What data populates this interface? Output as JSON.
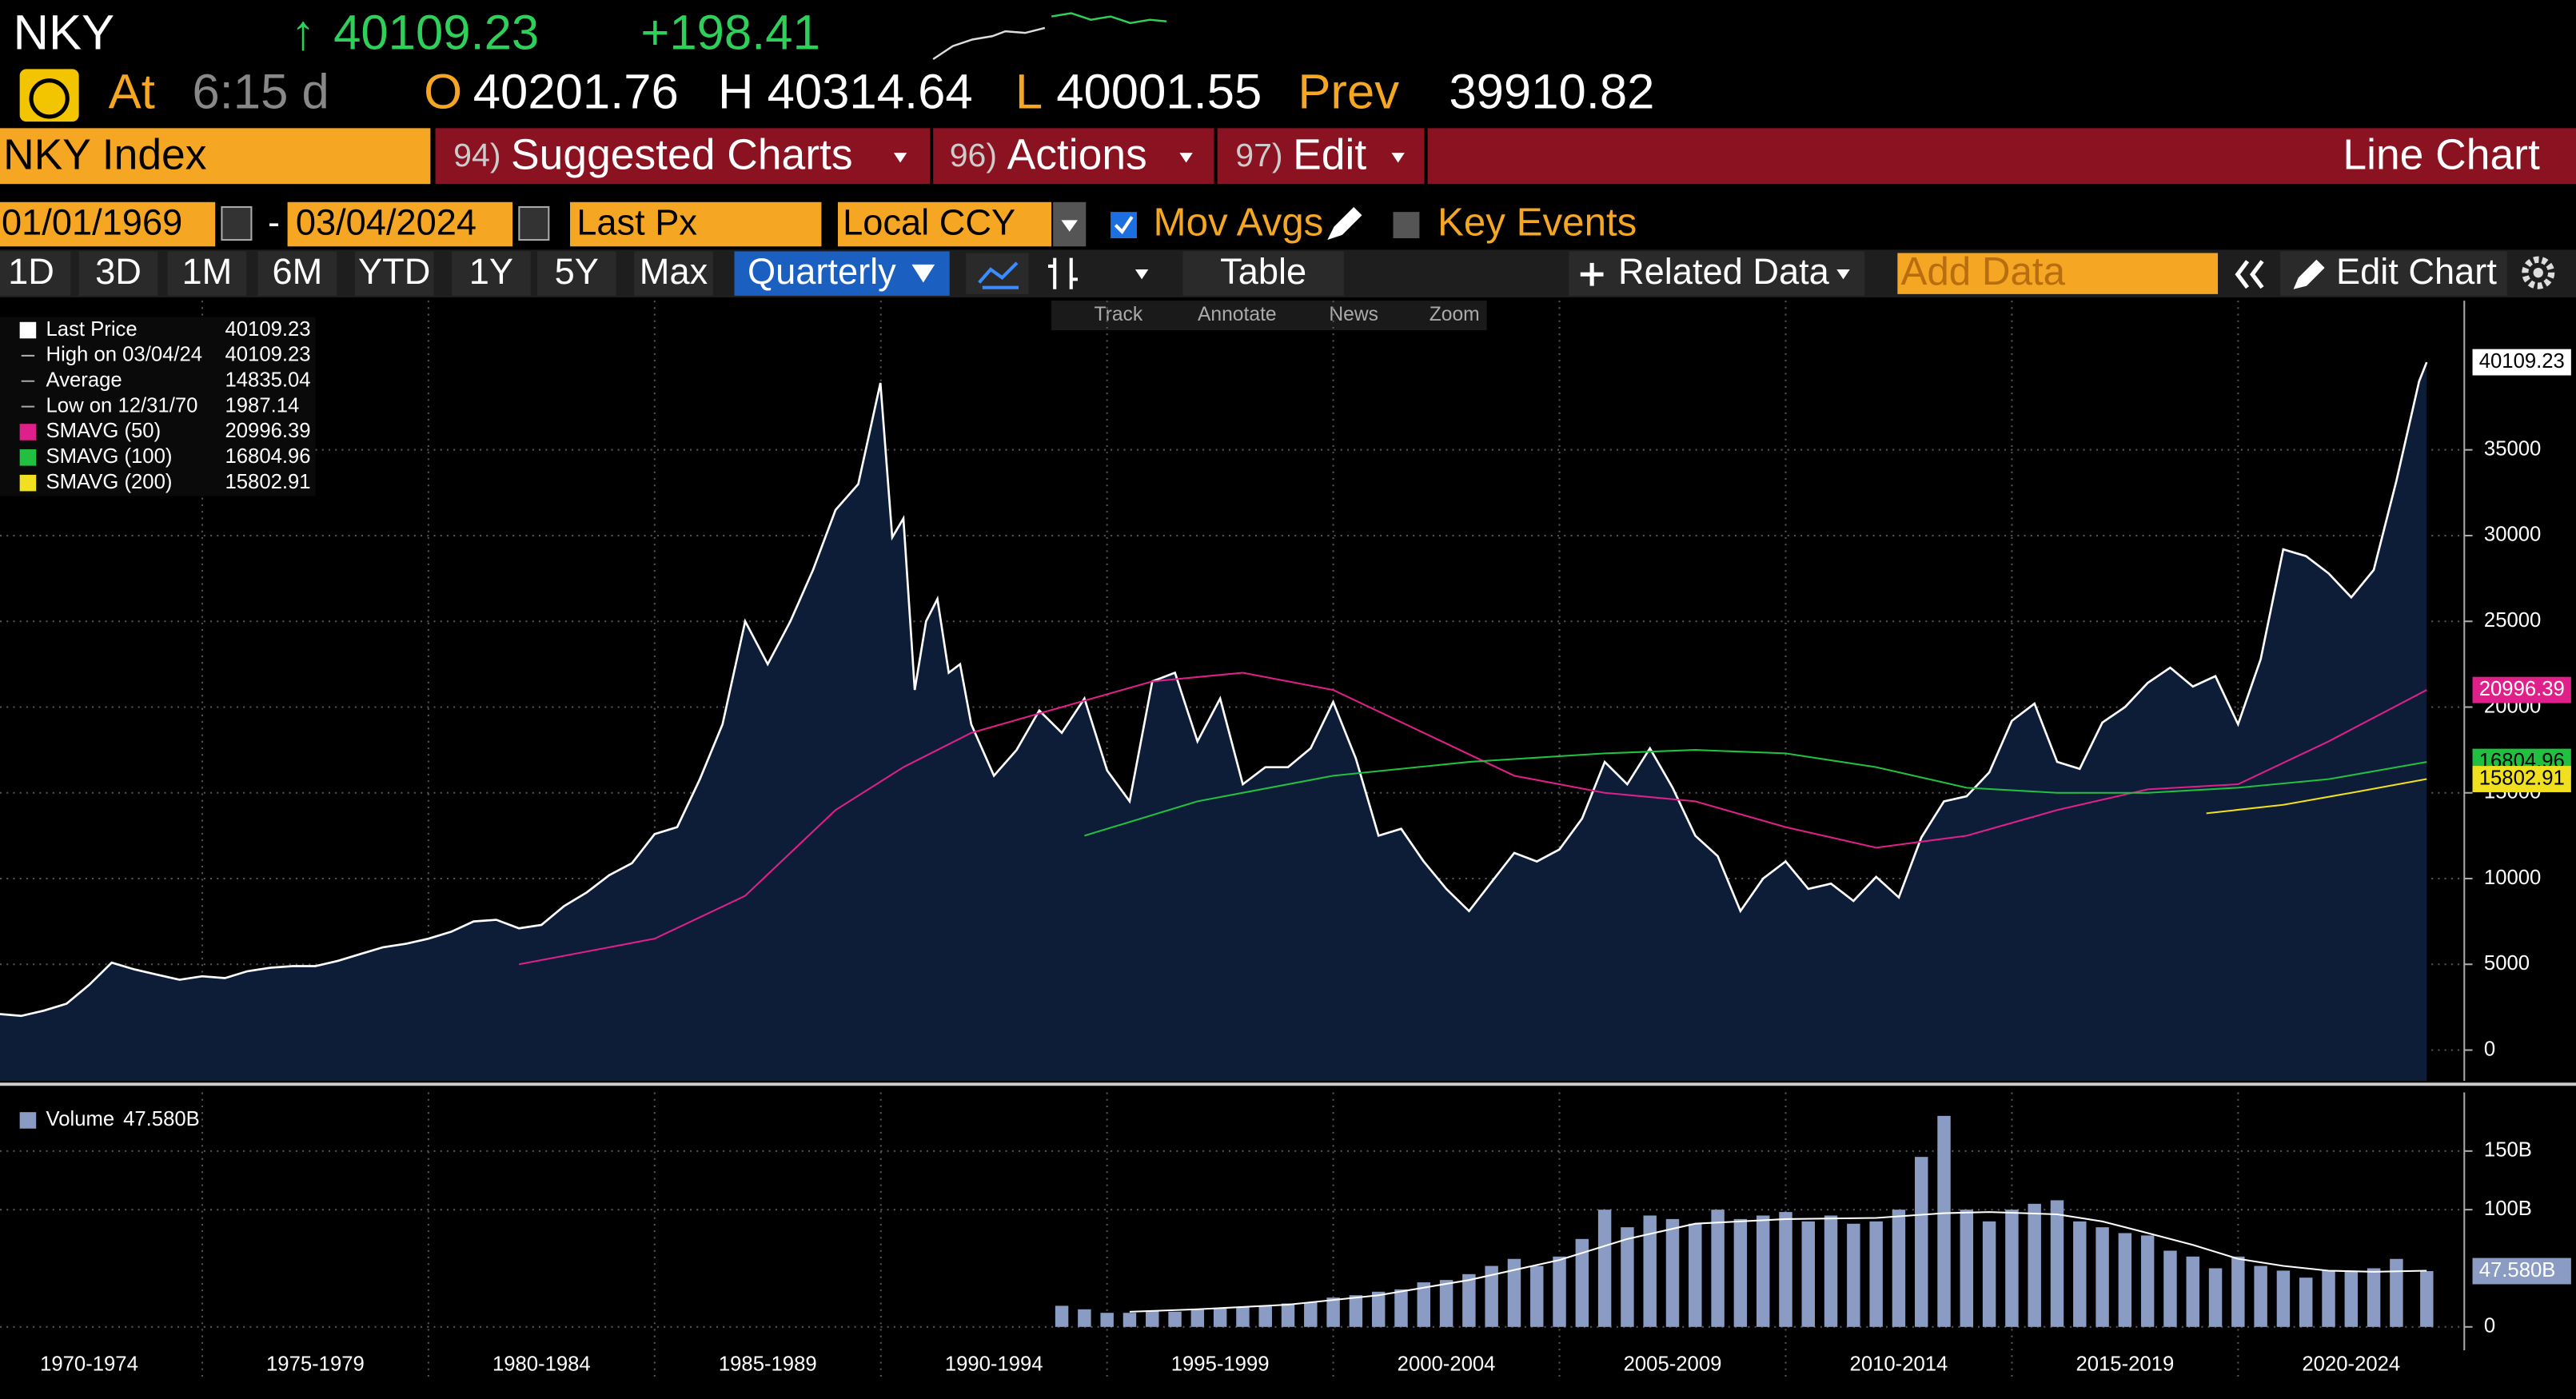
{
  "header": {
    "ticker": "NKY",
    "arrow": "↑",
    "last": 40109.23,
    "change": "+198.41",
    "at_label": "At",
    "time": "6:15 d",
    "open_label": "O",
    "open": 40201.76,
    "high_label": "H",
    "high": 40314.64,
    "low_label": "L",
    "low": 40001.55,
    "prev_label": "Prev",
    "prev": 39910.82
  },
  "menu": {
    "security": "NKY Index",
    "items": [
      {
        "num": "94)",
        "label": "Suggested Charts"
      },
      {
        "num": "96)",
        "label": "Actions"
      },
      {
        "num": "97)",
        "label": "Edit"
      }
    ],
    "chart_type": "Line Chart"
  },
  "controls": {
    "start_date": "01/01/1969",
    "separator": "-",
    "end_date": "03/04/2024",
    "field": "Last Px",
    "currency": "Local CCY",
    "mov_avgs": "Mov Avgs",
    "key_events": "Key Events"
  },
  "toolbar": {
    "periods": [
      "1D",
      "3D",
      "1M",
      "6M",
      "YTD",
      "1Y",
      "5Y",
      "Max"
    ],
    "frequency": "Quarterly",
    "table": "Table",
    "related": "Related Data",
    "add_data": "Add Data",
    "edit_chart": "Edit Chart"
  },
  "chart_tools": [
    "Track",
    "Annotate",
    "News",
    "Zoom"
  ],
  "chart_data": [
    {
      "type": "line",
      "xlim": [
        1970.53,
        2025
      ],
      "ylim": [
        -1800,
        43700
      ],
      "xticks": [
        1975,
        1980,
        1985,
        1990,
        1995,
        2000,
        2005,
        2010,
        2015,
        2020
      ],
      "yticks": [
        0,
        5000,
        10000,
        15000,
        20000,
        25000,
        30000,
        35000
      ],
      "grid": true,
      "stats": [
        {
          "label": "High on 03/04/24",
          "value": 40109.23
        },
        {
          "label": "Average",
          "value": 14835.04
        },
        {
          "label": "Low on 12/31/70",
          "value": 1987.14
        }
      ],
      "series": [
        {
          "name": "Last Price",
          "color": "#ffffff",
          "area_color": "#0d1d38",
          "x": [
            1970.53,
            1971,
            1971.5,
            1972,
            1972.5,
            1973,
            1973.5,
            1974,
            1974.5,
            1975,
            1975.5,
            1976,
            1976.5,
            1977,
            1977.5,
            1978,
            1978.5,
            1979,
            1979.5,
            1980,
            1980.5,
            1981,
            1981.5,
            1982,
            1982.5,
            1983,
            1983.5,
            1984,
            1984.5,
            1985,
            1985.5,
            1986,
            1986.5,
            1987,
            1987.5,
            1988,
            1988.5,
            1989,
            1989.5,
            1989.99,
            1990.25,
            1990.5,
            1990.75,
            1991,
            1991.25,
            1991.5,
            1991.75,
            1992,
            1992.5,
            1993,
            1993.5,
            1994,
            1994.5,
            1995,
            1995.5,
            1996,
            1996.5,
            1997,
            1997.5,
            1998,
            1998.5,
            1999,
            1999.5,
            2000,
            2000.5,
            2001,
            2001.5,
            2002,
            2002.5,
            2003,
            2003.5,
            2004,
            2004.5,
            2005,
            2005.5,
            2006,
            2006.5,
            2007,
            2007.5,
            2008,
            2008.5,
            2009,
            2009.5,
            2010,
            2010.5,
            2011,
            2011.5,
            2012,
            2012.5,
            2013,
            2013.5,
            2014,
            2014.5,
            2015,
            2015.5,
            2016,
            2016.5,
            2017,
            2017.5,
            2018,
            2018.5,
            2019,
            2019.5,
            2020,
            2020.5,
            2021,
            2021.5,
            2022,
            2022.5,
            2023,
            2023.5,
            2024,
            2024.17
          ],
          "values": [
            2100,
            1990,
            2300,
            2700,
            3800,
            5100,
            4700,
            4400,
            4100,
            4300,
            4200,
            4600,
            4800,
            4900,
            4900,
            5200,
            5600,
            6000,
            6200,
            6500,
            6900,
            7500,
            7600,
            7100,
            7300,
            8400,
            9200,
            10200,
            10900,
            12600,
            13000,
            15800,
            19000,
            25000,
            22500,
            25000,
            28000,
            31500,
            33000,
            38900,
            29900,
            31000,
            21000,
            25000,
            26300,
            22000,
            22500,
            19000,
            16000,
            17500,
            19800,
            18500,
            20500,
            16300,
            14500,
            21500,
            22000,
            18000,
            20500,
            15500,
            16500,
            16500,
            17600,
            20300,
            17000,
            12500,
            12900,
            11000,
            9400,
            8100,
            9800,
            11500,
            11000,
            11700,
            13500,
            16800,
            15500,
            17600,
            15300,
            12500,
            11300,
            8100,
            10000,
            11000,
            9400,
            9700,
            8700,
            10100,
            8900,
            12400,
            14500,
            14800,
            16200,
            19200,
            20200,
            16800,
            16400,
            19100,
            20000,
            21400,
            22300,
            21200,
            21800,
            19000,
            22800,
            29200,
            28800,
            27800,
            26400,
            28000,
            33200,
            39000,
            40109.23
          ]
        },
        {
          "name": "SMAVG (50)",
          "color": "#e0208a",
          "x": [
            1982,
            1985,
            1987,
            1989,
            1990.5,
            1992,
            1994,
            1996,
            1998,
            2000,
            2002,
            2004,
            2006,
            2008,
            2010,
            2012,
            2014,
            2016,
            2018,
            2020,
            2022,
            2024.17
          ],
          "values": [
            5000,
            6500,
            9000,
            14000,
            16500,
            18500,
            20000,
            21500,
            22000,
            21000,
            18500,
            16000,
            15000,
            14500,
            13000,
            11800,
            12500,
            14000,
            15200,
            15500,
            18000,
            20996.39
          ]
        },
        {
          "name": "SMAVG (100)",
          "color": "#22c040",
          "x": [
            1994.5,
            1997,
            2000,
            2003,
            2006,
            2008,
            2010,
            2012,
            2014,
            2016,
            2018,
            2020,
            2022,
            2024.17
          ],
          "values": [
            12500,
            14500,
            16000,
            16800,
            17300,
            17500,
            17300,
            16500,
            15300,
            15000,
            15000,
            15300,
            15800,
            16804.96
          ]
        },
        {
          "name": "SMAVG (200)",
          "color": "#f0e020",
          "x": [
            2019.3,
            2021,
            2022.5,
            2024.17
          ],
          "values": [
            13800,
            14300,
            15000,
            15802.91
          ]
        }
      ]
    },
    {
      "type": "bar",
      "xlim": [
        1970.53,
        2025
      ],
      "ylim": [
        -20,
        200
      ],
      "xticks": [
        {
          "value": 1972.5,
          "label": "1970-1974"
        },
        {
          "value": 1977.5,
          "label": "1975-1979"
        },
        {
          "value": 1982.5,
          "label": "1980-1984"
        },
        {
          "value": 1987.5,
          "label": "1985-1989"
        },
        {
          "value": 1992.5,
          "label": "1990-1994"
        },
        {
          "value": 1997.5,
          "label": "1995-1999"
        },
        {
          "value": 2002.5,
          "label": "2000-2004"
        },
        {
          "value": 2007.5,
          "label": "2005-2009"
        },
        {
          "value": 2012.5,
          "label": "2010-2014"
        },
        {
          "value": 2017.5,
          "label": "2015-2019"
        },
        {
          "value": 2022.5,
          "label": "2020-2024"
        }
      ],
      "yticks": [
        0,
        {
          "value": 100,
          "label": "100B"
        },
        {
          "value": 150,
          "label": "150B"
        }
      ],
      "grid": true,
      "series": [
        {
          "name": "Volume",
          "color": "#8a9cc4",
          "kind": "bar",
          "x": [
            1994,
            1994.5,
            1995,
            1995.5,
            1996,
            1996.5,
            1997,
            1997.5,
            1998,
            1998.5,
            1999,
            1999.5,
            2000,
            2000.5,
            2001,
            2001.5,
            2002,
            2002.5,
            2003,
            2003.5,
            2004,
            2004.5,
            2005,
            2005.5,
            2006,
            2006.5,
            2007,
            2007.5,
            2008,
            2008.5,
            2009,
            2009.5,
            2010,
            2010.5,
            2011,
            2011.5,
            2012,
            2012.5,
            2013,
            2013.5,
            2014,
            2014.5,
            2015,
            2015.5,
            2016,
            2016.5,
            2017,
            2017.5,
            2018,
            2018.5,
            2019,
            2019.5,
            2020,
            2020.5,
            2021,
            2021.5,
            2022,
            2022.5,
            2023,
            2023.5,
            2024.17
          ],
          "values": [
            18,
            15,
            12,
            12,
            14,
            13,
            15,
            16,
            17,
            18,
            20,
            21,
            25,
            27,
            30,
            32,
            38,
            40,
            45,
            52,
            58,
            52,
            60,
            75,
            100,
            85,
            95,
            92,
            88,
            100,
            92,
            95,
            98,
            90,
            95,
            88,
            90,
            100,
            145,
            180,
            100,
            90,
            100,
            105,
            108,
            90,
            85,
            80,
            78,
            65,
            60,
            50,
            60,
            52,
            48,
            42,
            48,
            48,
            50,
            58,
            47.58
          ],
          "value_labels": [
            null,
            null,
            null,
            null,
            null,
            null,
            null,
            null,
            null,
            null,
            null,
            null,
            null,
            null,
            null,
            null,
            null,
            null,
            null,
            null,
            null,
            null,
            null,
            null,
            null,
            null,
            null,
            null,
            null,
            null,
            null,
            null,
            null,
            null,
            null,
            null,
            null,
            null,
            null,
            null,
            null,
            null,
            null,
            null,
            null,
            null,
            null,
            null,
            null,
            null,
            null,
            null,
            null,
            null,
            null,
            null,
            null,
            null,
            null,
            null,
            "47.580B"
          ]
        },
        {
          "color": "#ffffff",
          "kind": "line",
          "x": [
            1995.5,
            1997,
            1999,
            2001,
            2003,
            2005,
            2006.5,
            2008,
            2010,
            2012,
            2013.5,
            2014.5,
            2016,
            2017,
            2018,
            2019,
            2020,
            2021,
            2022,
            2023,
            2024.17
          ],
          "values": [
            13,
            15,
            19,
            27,
            40,
            57,
            75,
            88,
            92,
            93,
            97,
            98,
            96,
            90,
            80,
            70,
            58,
            52,
            48,
            47,
            48
          ]
        }
      ]
    }
  ]
}
